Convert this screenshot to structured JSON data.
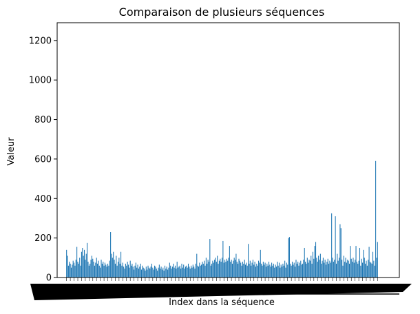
{
  "chart_data": {
    "type": "bar",
    "title": "Comparaison de plusieurs séquences",
    "xlabel": "Index dans la séquence",
    "ylabel": "Valeur",
    "ylim": [
      0,
      1290
    ],
    "yticks": [
      0,
      200,
      400,
      600,
      800,
      1000,
      1200
    ],
    "grid": false,
    "bar_color": "#1f77b4",
    "x_tick_labels_overlapping": true,
    "series": [
      {
        "values": [
          140,
          110,
          60,
          80,
          70,
          50,
          65,
          85,
          75,
          60,
          90,
          155,
          80,
          70,
          100,
          60,
          130,
          150,
          110,
          140,
          90,
          120,
          175,
          80,
          60,
          70,
          90,
          110,
          95,
          80,
          60,
          75,
          100,
          70,
          85,
          60,
          50,
          90,
          70,
          80,
          60,
          75,
          65,
          55,
          70,
          60,
          85,
          230,
          120,
          100,
          130,
          90,
          70,
          110,
          60,
          80,
          100,
          70,
          130,
          60,
          75,
          55,
          45,
          70,
          60,
          80,
          65,
          50,
          85,
          60,
          70,
          55,
          40,
          60,
          75,
          50,
          65,
          45,
          55,
          70,
          40,
          60,
          50,
          45,
          35,
          55,
          40,
          60,
          50,
          45,
          55,
          70,
          50,
          40,
          60,
          55,
          45,
          35,
          50,
          65,
          45,
          55,
          40,
          50,
          35,
          60,
          45,
          55,
          40,
          50,
          75,
          60,
          45,
          55,
          70,
          50,
          60,
          45,
          80,
          50,
          55,
          60,
          45,
          70,
          50,
          65,
          45,
          55,
          60,
          50,
          70,
          55,
          45,
          60,
          50,
          65,
          55,
          45,
          70,
          120,
          60,
          55,
          75,
          60,
          65,
          80,
          70,
          85,
          60,
          100,
          70,
          90,
          80,
          195,
          60,
          70,
          85,
          75,
          90,
          100,
          80,
          110,
          70,
          85,
          95,
          80,
          100,
          185,
          75,
          90,
          80,
          95,
          85,
          100,
          160,
          80,
          90,
          70,
          85,
          100,
          90,
          120,
          80,
          70,
          95,
          85,
          75,
          60,
          80,
          70,
          90,
          65,
          75,
          60,
          170,
          70,
          85,
          60,
          75,
          90,
          65,
          80,
          55,
          70,
          60,
          85,
          75,
          140,
          70,
          60,
          80,
          65,
          75,
          55,
          70,
          60,
          80,
          65,
          55,
          75,
          60,
          70,
          50,
          65,
          55,
          80,
          60,
          75,
          50,
          65,
          55,
          70,
          60,
          85,
          50,
          75,
          65,
          200,
          205,
          70,
          60,
          80,
          65,
          75,
          55,
          90,
          70,
          80,
          60,
          75,
          85,
          65,
          70,
          90,
          150,
          80,
          70,
          100,
          75,
          90,
          85,
          110,
          70,
          130,
          95,
          160,
          180,
          100,
          80,
          110,
          90,
          120,
          70,
          85,
          100,
          75,
          90,
          65,
          80,
          95,
          70,
          85,
          75,
          325,
          100,
          80,
          90,
          310,
          70,
          120,
          85,
          100,
          270,
          250,
          90,
          60,
          110,
          80,
          100,
          75,
          90,
          85,
          70,
          160,
          95,
          80,
          100,
          75,
          90,
          160,
          80,
          70,
          85,
          150,
          60,
          95,
          75,
          140,
          100,
          70,
          85,
          60,
          90,
          155,
          80,
          75,
          70,
          130,
          85,
          60,
          590,
          100,
          180
        ]
      }
    ]
  }
}
